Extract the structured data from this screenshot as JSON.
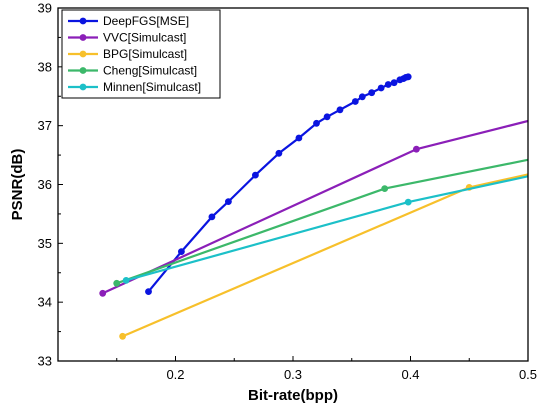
{
  "chart_data": {
    "type": "line",
    "xlabel": "Bit-rate(bpp)",
    "ylabel": "PSNR(dB)",
    "xlim": [
      0.1,
      0.5
    ],
    "ylim": [
      33,
      39
    ],
    "xticks": [
      0.2,
      0.3,
      0.4,
      0.5
    ],
    "yticks": [
      33,
      34,
      35,
      36,
      37,
      38,
      39
    ],
    "xtick_labels": [
      "0.2",
      "0.3",
      "0.4",
      "0.5"
    ],
    "ytick_labels": [
      "33",
      "34",
      "35",
      "36",
      "37",
      "38",
      "39"
    ],
    "grid": false,
    "legend_position": "top-left",
    "series": [
      {
        "name": "DeepFGS[MSE]",
        "color": "#0a14e0",
        "x": [
          0.177,
          0.205,
          0.231,
          0.245,
          0.268,
          0.288,
          0.305,
          0.32,
          0.329,
          0.34,
          0.353,
          0.359,
          0.367,
          0.375,
          0.381,
          0.386,
          0.391,
          0.394,
          0.396,
          0.398
        ],
        "y": [
          34.18,
          34.86,
          35.45,
          35.71,
          36.16,
          36.53,
          36.79,
          37.04,
          37.15,
          37.27,
          37.41,
          37.49,
          37.56,
          37.64,
          37.7,
          37.73,
          37.78,
          37.8,
          37.82,
          37.83
        ]
      },
      {
        "name": "VVC[Simulcast]",
        "color": "#8b1fb8",
        "x": [
          0.138,
          0.405,
          0.5
        ],
        "y": [
          34.15,
          36.6,
          37.08
        ]
      },
      {
        "name": "BPG[Simulcast]",
        "color": "#f7c02b",
        "x": [
          0.155,
          0.45,
          0.5
        ],
        "y": [
          33.42,
          35.95,
          36.17
        ]
      },
      {
        "name": "Cheng[Simulcast]",
        "color": "#3cb86a",
        "x": [
          0.15,
          0.378,
          0.5
        ],
        "y": [
          34.32,
          35.93,
          36.42
        ]
      },
      {
        "name": "Minnen[Simulcast]",
        "color": "#1cc0c8",
        "x": [
          0.158,
          0.398,
          0.5
        ],
        "y": [
          34.37,
          35.7,
          36.14
        ]
      }
    ]
  }
}
